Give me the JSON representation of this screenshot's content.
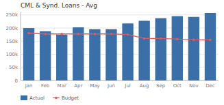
{
  "chart_data": {
    "type": "bar",
    "title": "CML & Synd. Loans - Avg",
    "categories": [
      "Jan",
      "Feb",
      "Mar",
      "Apr",
      "May",
      "Jun",
      "Jul",
      "Aug",
      "Sep",
      "Oct",
      "Nov",
      "Dec"
    ],
    "series": [
      {
        "name": "Actual",
        "type": "bar",
        "color": "#3A6FA8",
        "values": [
          200,
          187.5,
          175,
          202.5,
          195,
          195,
          217.5,
          227.5,
          237.5,
          245,
          242.5,
          257.5
        ]
      },
      {
        "name": "Budget",
        "type": "line",
        "color": "#E05A5A",
        "marker": "circle",
        "values": [
          180,
          177.5,
          177.5,
          177.5,
          177.5,
          177.5,
          175,
          160,
          160,
          157.5,
          155,
          155
        ]
      }
    ],
    "ylim": [
      0,
      260
    ],
    "yticks": [
      0,
      {
        "value": 50,
        "label": "50k"
      },
      {
        "value": 100,
        "label": "100k"
      },
      {
        "value": 150,
        "label": "150k"
      },
      {
        "value": 200,
        "label": "200k"
      },
      {
        "value": 250,
        "label": "250k"
      }
    ],
    "grid": true,
    "legend": "bottom"
  }
}
